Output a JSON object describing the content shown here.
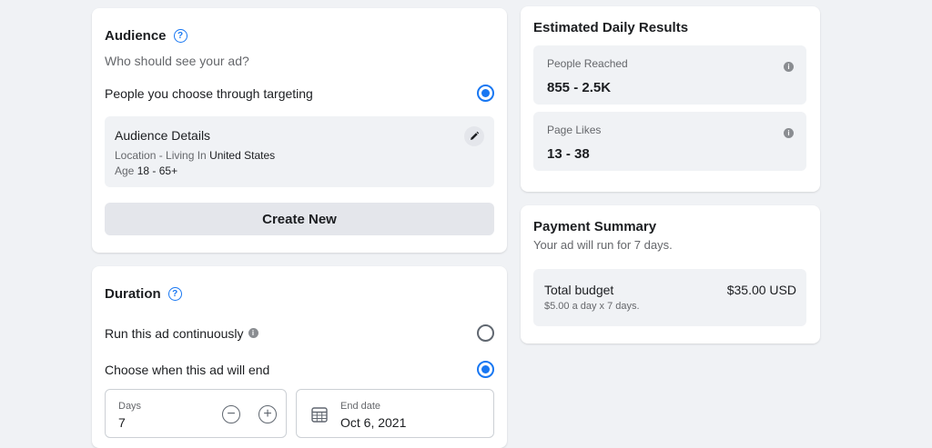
{
  "audience": {
    "title": "Audience",
    "subtitle": "Who should see your ad?",
    "option_label": "People you choose through targeting",
    "details": {
      "heading": "Audience Details",
      "location_prefix": "Location - Living In",
      "location_value": "United States",
      "age_prefix": "Age",
      "age_value": "18 - 65+"
    },
    "create_new_label": "Create New"
  },
  "duration": {
    "title": "Duration",
    "option_continuous": "Run this ad continuously",
    "option_end": "Choose when this ad will end",
    "days_label": "Days",
    "days_value": "7",
    "end_date_label": "End date",
    "end_date_value": "Oct 6, 2021"
  },
  "estimated": {
    "title": "Estimated Daily Results",
    "people_reached_label": "People Reached",
    "people_reached_value": "855 - 2.5K",
    "page_likes_label": "Page Likes",
    "page_likes_value": "13 - 38"
  },
  "payment": {
    "title": "Payment Summary",
    "subtitle": "Your ad will run for 7 days.",
    "total_label": "Total budget",
    "total_value": "$35.00 USD",
    "breakdown": "$5.00 a day x 7 days."
  },
  "colors": {
    "accent": "#1877f2",
    "background": "#f0f2f5"
  },
  "icons": [
    "help-icon",
    "info-icon",
    "pencil-icon",
    "minus-icon",
    "plus-icon",
    "calendar-icon"
  ]
}
